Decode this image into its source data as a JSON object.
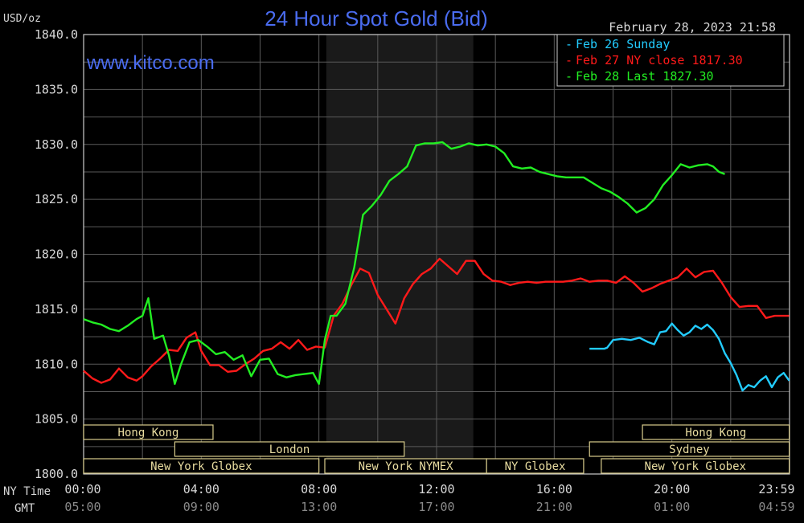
{
  "chart_data": {
    "type": "line",
    "title": "24 Hour Spot Gold (Bid)",
    "website": "www.kitco.com",
    "unit_label": "USD/oz",
    "timestamp": "February 28, 2023 21:58",
    "ylim": [
      1800,
      1840
    ],
    "y_ticks": [
      "1840.0",
      "1835.0",
      "1830.0",
      "1825.0",
      "1820.0",
      "1815.0",
      "1810.0",
      "1805.0",
      "1800.0"
    ],
    "x_row_labels": [
      "NY Time",
      "GMT"
    ],
    "x_ticks_ny": [
      "00:00",
      "04:00",
      "08:00",
      "12:00",
      "16:00",
      "20:00",
      "23:59"
    ],
    "x_ticks_gmt": [
      "05:00",
      "09:00",
      "13:00",
      "17:00",
      "21:00",
      "01:00",
      "04:59"
    ],
    "grid": true,
    "legend": [
      "Feb 26 Sunday",
      "Feb 27 NY close 1817.30",
      "Feb 28 Last 1827.30"
    ],
    "sessions": [
      {
        "label": "Hong Kong",
        "start": 0.0,
        "end": 4.4
      },
      {
        "label": "London",
        "start": 3.1,
        "end": 10.9
      },
      {
        "label": "New York Globex",
        "start": 0.0,
        "end": 8.0
      },
      {
        "label": "New York NYMEX",
        "start": 8.2,
        "end": 13.7
      },
      {
        "label": "NY Globex",
        "start": 13.7,
        "end": 17.0
      },
      {
        "label": "Hong Kong",
        "start": 19.0,
        "end": 23.99
      },
      {
        "label": "Sydney",
        "start": 17.2,
        "end": 23.99
      },
      {
        "label": "New York Globex",
        "start": 17.6,
        "end": 23.99
      }
    ],
    "shaded_hours": [
      8.25,
      13.25
    ],
    "series": [
      {
        "name": "Feb 26 Sunday",
        "color": "#22ccff",
        "x": [
          17.2,
          17.5,
          17.7,
          17.8,
          18.0,
          18.3,
          18.6,
          18.9,
          19.2,
          19.4,
          19.6,
          19.8,
          20.0,
          20.2,
          20.4,
          20.6,
          20.8,
          21.0,
          21.2,
          21.4,
          21.6,
          21.8,
          22.0,
          22.2,
          22.4,
          22.6,
          22.8,
          23.0,
          23.2,
          23.4,
          23.6,
          23.8,
          23.99
        ],
        "y": [
          1811.4,
          1811.4,
          1811.4,
          1811.5,
          1812.2,
          1812.3,
          1812.2,
          1812.4,
          1812.0,
          1811.8,
          1812.9,
          1813.0,
          1813.7,
          1813.1,
          1812.6,
          1812.9,
          1813.5,
          1813.2,
          1813.6,
          1813.1,
          1812.3,
          1811.0,
          1810.1,
          1809.0,
          1807.6,
          1808.1,
          1807.9,
          1808.5,
          1808.9,
          1807.9,
          1808.8,
          1809.2,
          1808.5
        ]
      },
      {
        "name": "Feb 27 NY close 1817.30",
        "color": "#ff1a1a",
        "x": [
          0.0,
          0.3,
          0.6,
          0.9,
          1.2,
          1.5,
          1.8,
          2.0,
          2.3,
          2.6,
          2.9,
          3.2,
          3.5,
          3.8,
          4.0,
          4.3,
          4.6,
          4.9,
          5.2,
          5.5,
          5.8,
          6.1,
          6.4,
          6.7,
          7.0,
          7.3,
          7.6,
          7.9,
          8.2,
          8.5,
          8.8,
          9.1,
          9.4,
          9.7,
          10.0,
          10.3,
          10.6,
          10.9,
          11.2,
          11.5,
          11.8,
          12.1,
          12.4,
          12.7,
          13.0,
          13.3,
          13.6,
          13.9,
          14.2,
          14.5,
          14.8,
          15.1,
          15.4,
          15.7,
          16.0,
          16.3,
          16.6,
          16.9,
          17.2,
          17.5,
          17.8,
          18.1,
          18.4,
          18.7,
          19.0,
          19.3,
          19.6,
          19.9,
          20.2,
          20.5,
          20.8,
          21.1,
          21.4,
          21.7,
          22.0,
          22.3,
          22.6,
          22.9,
          23.2,
          23.5,
          23.8,
          23.99
        ],
        "y": [
          1809.4,
          1808.7,
          1808.3,
          1808.6,
          1809.6,
          1808.8,
          1808.5,
          1808.9,
          1809.8,
          1810.5,
          1811.3,
          1811.2,
          1812.4,
          1812.9,
          1811.2,
          1809.9,
          1809.9,
          1809.3,
          1809.4,
          1810.0,
          1810.5,
          1811.2,
          1811.4,
          1812.0,
          1811.4,
          1812.2,
          1811.3,
          1811.6,
          1811.5,
          1814.4,
          1815.5,
          1817.2,
          1818.7,
          1818.3,
          1816.3,
          1815.0,
          1813.7,
          1816.0,
          1817.3,
          1818.2,
          1818.7,
          1819.6,
          1818.9,
          1818.2,
          1819.4,
          1819.4,
          1818.2,
          1817.6,
          1817.5,
          1817.2,
          1817.4,
          1817.5,
          1817.4,
          1817.5,
          1817.5,
          1817.5,
          1817.6,
          1817.8,
          1817.5,
          1817.6,
          1817.6,
          1817.4,
          1818.0,
          1817.4,
          1816.6,
          1816.9,
          1817.3,
          1817.6,
          1817.9,
          1818.7,
          1817.9,
          1818.4,
          1818.5,
          1817.4,
          1816.1,
          1815.2,
          1815.3,
          1815.3,
          1814.2,
          1814.4,
          1814.4,
          1814.4
        ]
      },
      {
        "name": "Feb 28 Last 1827.30",
        "color": "#22ee22",
        "x": [
          0.0,
          0.3,
          0.6,
          0.9,
          1.2,
          1.5,
          1.8,
          2.0,
          2.2,
          2.4,
          2.7,
          2.9,
          3.1,
          3.3,
          3.6,
          3.9,
          4.2,
          4.5,
          4.8,
          5.1,
          5.4,
          5.7,
          6.0,
          6.3,
          6.6,
          6.9,
          7.2,
          7.5,
          7.8,
          8.0,
          8.2,
          8.4,
          8.6,
          8.9,
          9.2,
          9.5,
          9.8,
          10.1,
          10.4,
          10.7,
          11.0,
          11.3,
          11.6,
          11.9,
          12.2,
          12.5,
          12.8,
          13.1,
          13.4,
          13.7,
          14.0,
          14.3,
          14.6,
          14.9,
          15.2,
          15.5,
          15.8,
          16.1,
          16.4,
          16.7,
          17.0,
          17.3,
          17.6,
          17.9,
          18.2,
          18.5,
          18.8,
          19.1,
          19.4,
          19.7,
          20.0,
          20.3,
          20.6,
          20.9,
          21.2,
          21.4,
          21.6,
          21.8
        ],
        "y": [
          1814.1,
          1813.8,
          1813.6,
          1813.2,
          1813.0,
          1813.5,
          1814.1,
          1814.4,
          1816.0,
          1812.3,
          1812.6,
          1810.8,
          1808.2,
          1809.9,
          1812.0,
          1812.2,
          1811.6,
          1810.9,
          1811.1,
          1810.4,
          1810.8,
          1808.9,
          1810.4,
          1810.5,
          1809.1,
          1808.8,
          1809.0,
          1809.1,
          1809.2,
          1808.2,
          1812.2,
          1814.4,
          1814.4,
          1815.5,
          1818.8,
          1823.6,
          1824.4,
          1825.4,
          1826.7,
          1827.3,
          1828.0,
          1829.9,
          1830.1,
          1830.1,
          1830.2,
          1829.6,
          1829.8,
          1830.1,
          1829.9,
          1830.0,
          1829.8,
          1829.2,
          1828.0,
          1827.8,
          1827.9,
          1827.5,
          1827.3,
          1827.1,
          1827.0,
          1827.0,
          1827.0,
          1826.5,
          1826.0,
          1825.7,
          1825.2,
          1824.6,
          1823.8,
          1824.2,
          1825.0,
          1826.3,
          1827.2,
          1828.2,
          1827.9,
          1828.1,
          1828.2,
          1828.0,
          1827.5,
          1827.3
        ]
      }
    ]
  }
}
